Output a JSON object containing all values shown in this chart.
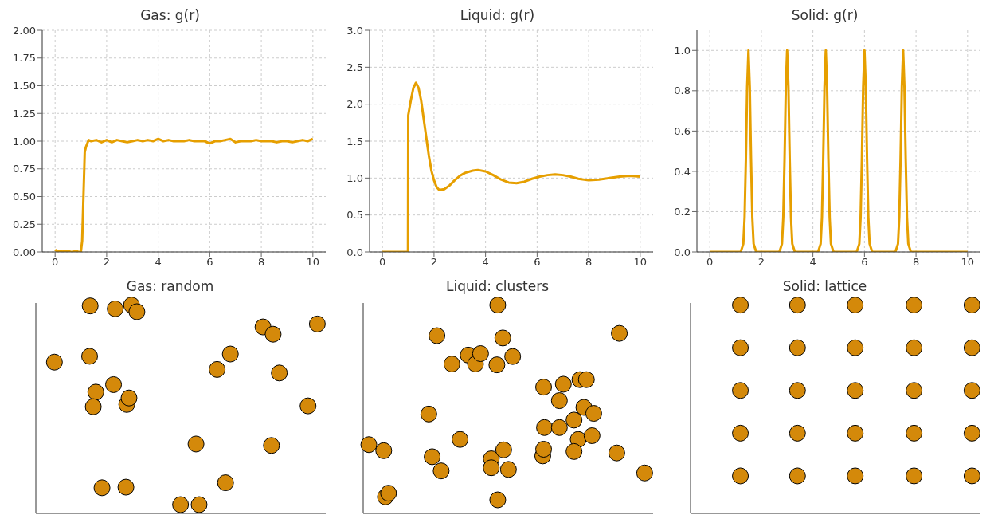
{
  "chart_data": [
    {
      "type": "line",
      "title": "Gas: g(r)",
      "xlim": [
        -0.5,
        10.5
      ],
      "xticks": [
        0,
        2,
        4,
        6,
        8,
        10
      ],
      "ylim": [
        0,
        2
      ],
      "yticks": [
        {
          "value": 0,
          "label": "0.00"
        },
        {
          "value": 0.25,
          "label": "0.25"
        },
        {
          "value": 0.5,
          "label": "0.50"
        },
        {
          "value": 0.75,
          "label": "0.75"
        },
        {
          "value": 1,
          "label": "1.00"
        },
        {
          "value": 1.25,
          "label": "1.25"
        },
        {
          "value": 1.5,
          "label": "1.50"
        },
        {
          "value": 1.75,
          "label": "1.75"
        },
        {
          "value": 2,
          "label": "2.00"
        }
      ],
      "grid": true,
      "line_style": "solid",
      "series": [
        {
          "color": "#e69f00",
          "x": [
            0,
            0.1,
            0.2,
            0.3,
            0.4,
            0.5,
            0.6,
            0.7,
            0.8,
            0.9,
            1.0,
            1.05,
            1.1,
            1.15,
            1.2,
            1.25,
            1.3,
            1.4,
            1.6,
            1.8,
            2.0,
            2.2,
            2.4,
            2.6,
            2.8,
            3.0,
            3.2,
            3.4,
            3.6,
            3.8,
            4.0,
            4.2,
            4.4,
            4.6,
            4.8,
            5.0,
            5.2,
            5.4,
            5.6,
            5.8,
            6.0,
            6.2,
            6.4,
            6.6,
            6.8,
            7.0,
            7.2,
            7.4,
            7.6,
            7.8,
            8.0,
            8.2,
            8.4,
            8.6,
            8.8,
            9.0,
            9.2,
            9.4,
            9.6,
            9.8,
            10.0
          ],
          "values": [
            0.02,
            0,
            0.01,
            0,
            0.01,
            0.01,
            0,
            0,
            0.01,
            0,
            0,
            0.1,
            0.5,
            0.9,
            0.95,
            0.98,
            1.01,
            1.0,
            1.01,
            0.99,
            1.01,
            0.99,
            1.01,
            1.0,
            0.99,
            1.0,
            1.01,
            1.0,
            1.01,
            1.0,
            1.02,
            1.0,
            1.01,
            1.0,
            1.0,
            1.0,
            1.01,
            1.0,
            1.0,
            1.0,
            0.98,
            1.0,
            1.0,
            1.01,
            1.02,
            0.99,
            1.0,
            1.0,
            1.0,
            1.01,
            1.0,
            1.0,
            1.0,
            0.99,
            1.0,
            1.0,
            0.99,
            1.0,
            1.01,
            1.0,
            1.02
          ]
        }
      ]
    },
    {
      "type": "line",
      "title": "Liquid: g(r)",
      "xlim": [
        -0.5,
        10.5
      ],
      "xticks": [
        0,
        2,
        4,
        6,
        8,
        10
      ],
      "ylim": [
        0,
        3
      ],
      "yticks": [
        {
          "value": 0,
          "label": "0.0"
        },
        {
          "value": 0.5,
          "label": "0.5"
        },
        {
          "value": 1,
          "label": "1.0"
        },
        {
          "value": 1.5,
          "label": "1.5"
        },
        {
          "value": 2,
          "label": "2.0"
        },
        {
          "value": 2.5,
          "label": "2.5"
        },
        {
          "value": 3,
          "label": "3.0"
        }
      ],
      "grid": true,
      "line_style": "solid",
      "series": [
        {
          "color": "#e69f00",
          "x": [
            0,
            0.99,
            1.0,
            1.1,
            1.2,
            1.3,
            1.4,
            1.5,
            1.6,
            1.7,
            1.8,
            1.9,
            2.0,
            2.1,
            2.2,
            2.4,
            2.6,
            2.8,
            3.0,
            3.2,
            3.5,
            3.7,
            4.0,
            4.3,
            4.6,
            4.9,
            5.2,
            5.5,
            5.8,
            6.1,
            6.4,
            6.7,
            7.0,
            7.3,
            7.6,
            8.0,
            8.4,
            8.8,
            9.2,
            9.6,
            10.0
          ],
          "values": [
            0,
            0,
            1.85,
            2.05,
            2.22,
            2.29,
            2.22,
            2.05,
            1.8,
            1.55,
            1.3,
            1.1,
            0.97,
            0.88,
            0.84,
            0.85,
            0.9,
            0.97,
            1.03,
            1.07,
            1.1,
            1.11,
            1.09,
            1.04,
            0.98,
            0.94,
            0.93,
            0.95,
            0.99,
            1.02,
            1.04,
            1.05,
            1.04,
            1.02,
            0.99,
            0.97,
            0.98,
            1.0,
            1.02,
            1.03,
            1.02
          ]
        }
      ]
    },
    {
      "type": "line",
      "title": "Solid: g(r)",
      "xlim": [
        -0.5,
        10.5
      ],
      "xticks": [
        0,
        2,
        4,
        6,
        8,
        10
      ],
      "ylim": [
        0,
        1.1
      ],
      "yticks": [
        {
          "value": 0,
          "label": "0.0"
        },
        {
          "value": 0.2,
          "label": "0.2"
        },
        {
          "value": 0.4,
          "label": "0.4"
        },
        {
          "value": 0.6,
          "label": "0.6"
        },
        {
          "value": 0.8,
          "label": "0.8"
        },
        {
          "value": 1,
          "label": "1.0"
        }
      ],
      "grid": true,
      "line_style": "solid",
      "series": [
        {
          "color": "#e69f00",
          "x": [
            0,
            1.2,
            1.3,
            1.35,
            1.4,
            1.45,
            1.5,
            1.55,
            1.6,
            1.65,
            1.7,
            1.8,
            2.7,
            2.8,
            2.85,
            2.9,
            2.95,
            3.0,
            3.05,
            3.1,
            3.15,
            3.2,
            3.3,
            4.2,
            4.3,
            4.35,
            4.4,
            4.45,
            4.5,
            4.55,
            4.6,
            4.65,
            4.7,
            4.8,
            5.7,
            5.8,
            5.85,
            5.9,
            5.95,
            6.0,
            6.05,
            6.1,
            6.15,
            6.2,
            6.3,
            7.2,
            7.3,
            7.35,
            7.4,
            7.45,
            7.5,
            7.55,
            7.6,
            7.65,
            7.7,
            7.8,
            10.0
          ],
          "values": [
            0,
            0,
            0.04,
            0.17,
            0.46,
            0.82,
            1,
            0.82,
            0.46,
            0.17,
            0.04,
            0,
            0,
            0.04,
            0.17,
            0.46,
            0.82,
            1,
            0.82,
            0.46,
            0.17,
            0.04,
            0,
            0,
            0.04,
            0.17,
            0.46,
            0.82,
            1,
            0.82,
            0.46,
            0.17,
            0.04,
            0,
            0,
            0.04,
            0.17,
            0.46,
            0.82,
            1,
            0.82,
            0.46,
            0.17,
            0.04,
            0,
            0,
            0.04,
            0.17,
            0.46,
            0.82,
            1,
            0.82,
            0.46,
            0.17,
            0.04,
            0,
            0
          ]
        }
      ]
    },
    {
      "type": "other",
      "title": "Gas: random"
    },
    {
      "type": "other",
      "title": "Liquid: clusters"
    },
    {
      "type": "other",
      "title": "Solid: lattice"
    }
  ]
}
